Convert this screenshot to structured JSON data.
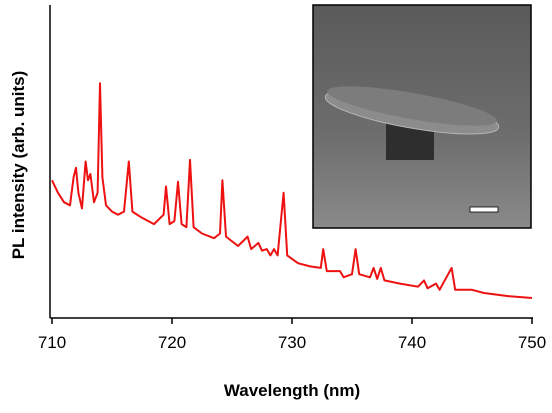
{
  "chart_data": {
    "type": "line",
    "x_label": "Wavelength (nm)",
    "y_label": "PL intensity (arb. units)",
    "xlim": [
      710,
      750
    ],
    "xticks": [
      710,
      720,
      730,
      740,
      750
    ],
    "ylim": [
      0,
      100
    ],
    "series": [
      {
        "color": "#ee1111",
        "x": [
          710.0,
          710.5,
          711.0,
          711.5,
          711.8,
          712.0,
          712.2,
          712.5,
          712.8,
          713.0,
          713.2,
          713.5,
          713.8,
          714.0,
          714.2,
          714.5,
          715.0,
          715.5,
          716.0,
          716.4,
          716.7,
          717.5,
          718.5,
          719.3,
          719.5,
          719.8,
          720.2,
          720.5,
          720.8,
          721.2,
          721.5,
          721.8,
          722.5,
          723.5,
          724.0,
          724.2,
          724.5,
          725.5,
          726.3,
          726.6,
          727.2,
          727.5,
          727.9,
          728.2,
          728.5,
          728.8,
          729.3,
          729.6,
          730.5,
          731.5,
          732.4,
          732.6,
          732.9,
          734.0,
          734.3,
          735.0,
          735.3,
          735.6,
          736.5,
          736.8,
          737.1,
          737.4,
          737.7,
          739.0,
          740.5,
          741.0,
          741.3,
          742.0,
          742.3,
          743.3,
          743.6,
          745.0,
          746.0,
          748.0,
          750.0
        ],
        "values": [
          44,
          40,
          37,
          36,
          45,
          48,
          40,
          35,
          50,
          44,
          46,
          37,
          40,
          75,
          45,
          36,
          34,
          33,
          34,
          50,
          34,
          32,
          30,
          33,
          42,
          30,
          31,
          43.5,
          30,
          29,
          50.5,
          29,
          27,
          25.5,
          27,
          44,
          26,
          23,
          26,
          22,
          24,
          21.5,
          22,
          20,
          22,
          20,
          40,
          20,
          17.5,
          16.5,
          16,
          22,
          15,
          15,
          13,
          14,
          22,
          14,
          13,
          16,
          12.5,
          16,
          12,
          11,
          10,
          12,
          9.5,
          11,
          9,
          16,
          9,
          9,
          8,
          7,
          6.4
        ]
      }
    ]
  }
}
